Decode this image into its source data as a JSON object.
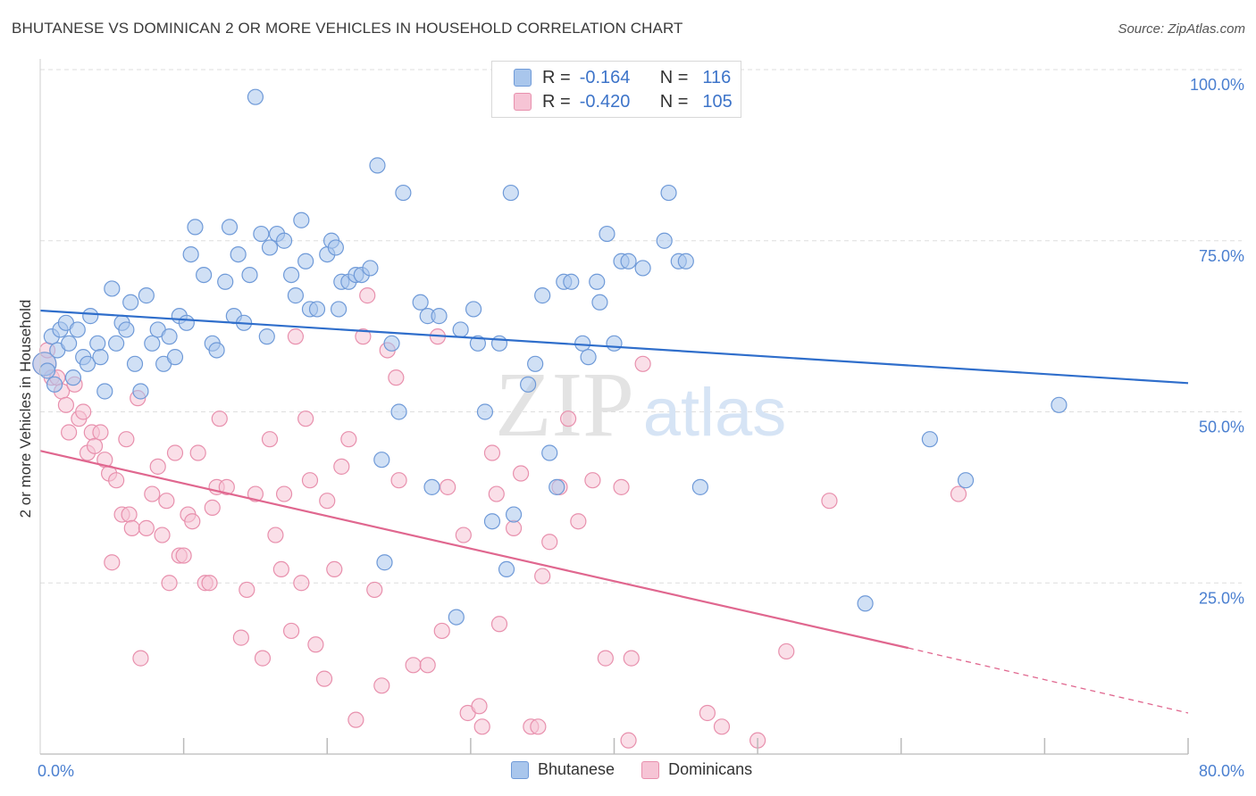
{
  "header": {
    "title": "BHUTANESE VS DOMINICAN 2 OR MORE VEHICLES IN HOUSEHOLD CORRELATION CHART",
    "source": "Source: ZipAtlas.com"
  },
  "legend_top": {
    "rows": [
      {
        "r_label": "R =",
        "r_value": "-0.164",
        "n_label": "N =",
        "n_value": "116",
        "color": "#5b8fd4"
      },
      {
        "r_label": "R =",
        "r_value": "-0.420",
        "n_label": "N =",
        "n_value": "105",
        "color": "#e87fa2"
      }
    ]
  },
  "watermark": {
    "zip": "ZIP",
    "atlas": "atlas"
  },
  "colors": {
    "blue_fill": "#a9c6ec",
    "blue_stroke": "#6f9ad8",
    "blue_line": "#2f6ecb",
    "pink_fill": "#f6c4d5",
    "pink_stroke": "#e890ad",
    "pink_line": "#e0678f",
    "axis_label": "#4a7fd0",
    "grid": "#dedede"
  },
  "chart_data": {
    "type": "scatter",
    "title": "BHUTANESE VS DOMINICAN 2 OR MORE VEHICLES IN HOUSEHOLD CORRELATION CHART",
    "xlabel": "",
    "ylabel": "2 or more Vehicles in Household",
    "xlim": [
      0,
      80
    ],
    "ylim": [
      0,
      100
    ],
    "x_tick_labels": [
      "0.0%",
      "80.0%"
    ],
    "y_tick_labels": [
      "25.0%",
      "50.0%",
      "75.0%",
      "100.0%"
    ],
    "y_ticks": [
      25,
      50,
      75,
      100
    ],
    "grid": true,
    "legend_position": "bottom",
    "series": [
      {
        "name": "Bhutanese",
        "r": -0.164,
        "n": 116,
        "trend": {
          "x0": 0,
          "y0": 64.8,
          "x1": 80,
          "y1": 54.2
        },
        "points": [
          [
            0.3,
            57
          ],
          [
            0.8,
            61
          ],
          [
            1.2,
            59
          ],
          [
            0.5,
            56
          ],
          [
            1,
            54
          ],
          [
            1.4,
            62
          ],
          [
            1.8,
            63
          ],
          [
            2,
            60
          ],
          [
            2.3,
            55
          ],
          [
            2.6,
            62
          ],
          [
            3,
            58
          ],
          [
            3.3,
            57
          ],
          [
            3.5,
            64
          ],
          [
            4,
            60
          ],
          [
            4.2,
            58
          ],
          [
            4.5,
            53
          ],
          [
            5,
            68
          ],
          [
            5.3,
            60
          ],
          [
            5.7,
            63
          ],
          [
            6,
            62
          ],
          [
            6.3,
            66
          ],
          [
            6.6,
            57
          ],
          [
            7,
            53
          ],
          [
            7.4,
            67
          ],
          [
            7.8,
            60
          ],
          [
            8.2,
            62
          ],
          [
            8.6,
            57
          ],
          [
            9,
            61
          ],
          [
            9.4,
            58
          ],
          [
            9.7,
            64
          ],
          [
            10.2,
            63
          ],
          [
            10.5,
            73
          ],
          [
            10.8,
            77
          ],
          [
            11.4,
            70
          ],
          [
            12,
            60
          ],
          [
            12.3,
            59
          ],
          [
            12.9,
            69
          ],
          [
            13.2,
            77
          ],
          [
            13.5,
            64
          ],
          [
            13.8,
            73
          ],
          [
            14.2,
            63
          ],
          [
            14.6,
            70
          ],
          [
            15,
            96
          ],
          [
            15.4,
            76
          ],
          [
            15.8,
            61
          ],
          [
            16,
            74
          ],
          [
            16.5,
            76
          ],
          [
            17,
            75
          ],
          [
            17.5,
            70
          ],
          [
            17.8,
            67
          ],
          [
            18.2,
            78
          ],
          [
            18.5,
            72
          ],
          [
            18.8,
            65
          ],
          [
            19.3,
            65
          ],
          [
            20,
            73
          ],
          [
            20.3,
            75
          ],
          [
            20.6,
            74
          ],
          [
            20.8,
            65
          ],
          [
            21,
            69
          ],
          [
            21.5,
            69
          ],
          [
            22,
            70
          ],
          [
            22.4,
            70
          ],
          [
            23,
            71
          ],
          [
            23.5,
            86
          ],
          [
            23.8,
            43
          ],
          [
            24,
            28
          ],
          [
            24.5,
            60
          ],
          [
            25,
            50
          ],
          [
            25.3,
            82
          ],
          [
            26.5,
            66
          ],
          [
            27,
            64
          ],
          [
            27.3,
            39
          ],
          [
            27.8,
            64
          ],
          [
            29,
            20
          ],
          [
            29.3,
            62
          ],
          [
            30.2,
            65
          ],
          [
            30.5,
            60
          ],
          [
            31,
            50
          ],
          [
            31.5,
            34
          ],
          [
            32,
            60
          ],
          [
            32.5,
            27
          ],
          [
            32.8,
            82
          ],
          [
            33,
            35
          ],
          [
            34,
            54
          ],
          [
            34.5,
            57
          ],
          [
            35,
            67
          ],
          [
            35.5,
            44
          ],
          [
            36,
            39
          ],
          [
            36.5,
            69
          ],
          [
            37,
            69
          ],
          [
            37.8,
            60
          ],
          [
            38.2,
            58
          ],
          [
            38.8,
            69
          ],
          [
            39,
            66
          ],
          [
            39.5,
            76
          ],
          [
            40,
            60
          ],
          [
            40.5,
            72
          ],
          [
            41,
            72
          ],
          [
            42,
            71
          ],
          [
            43,
            100
          ],
          [
            43.5,
            75
          ],
          [
            43.8,
            82
          ],
          [
            44.5,
            72
          ],
          [
            45,
            72
          ],
          [
            46,
            39
          ],
          [
            57.5,
            22
          ],
          [
            62,
            46
          ],
          [
            64.5,
            40
          ],
          [
            71,
            51
          ]
        ]
      },
      {
        "name": "Dominicans",
        "r": -0.42,
        "n": 105,
        "trend": {
          "x0": 0,
          "y0": 44.3,
          "x1": 60.5,
          "y1": 15.5,
          "dash_to_x": 80,
          "dash_to_y": 6
        },
        "points": [
          [
            0.3,
            57
          ],
          [
            0.5,
            59
          ],
          [
            0.8,
            55
          ],
          [
            1.2,
            55
          ],
          [
            1.5,
            53
          ],
          [
            1.8,
            51
          ],
          [
            2,
            47
          ],
          [
            2.4,
            54
          ],
          [
            2.7,
            49
          ],
          [
            3,
            50
          ],
          [
            3.3,
            44
          ],
          [
            3.6,
            47
          ],
          [
            3.8,
            45
          ],
          [
            4.2,
            47
          ],
          [
            4.5,
            43
          ],
          [
            4.8,
            41
          ],
          [
            5,
            28
          ],
          [
            5.3,
            40
          ],
          [
            5.7,
            35
          ],
          [
            6,
            46
          ],
          [
            6.2,
            35
          ],
          [
            6.4,
            33
          ],
          [
            6.8,
            52
          ],
          [
            7,
            14
          ],
          [
            7.4,
            33
          ],
          [
            7.8,
            38
          ],
          [
            8.2,
            42
          ],
          [
            8.5,
            32
          ],
          [
            8.8,
            37
          ],
          [
            9,
            25
          ],
          [
            9.4,
            44
          ],
          [
            9.7,
            29
          ],
          [
            10,
            29
          ],
          [
            10.3,
            35
          ],
          [
            10.6,
            34
          ],
          [
            11,
            44
          ],
          [
            11.5,
            25
          ],
          [
            11.8,
            25
          ],
          [
            12,
            36
          ],
          [
            12.3,
            39
          ],
          [
            12.5,
            49
          ],
          [
            13,
            39
          ],
          [
            14,
            17
          ],
          [
            14.4,
            24
          ],
          [
            15,
            38
          ],
          [
            15.5,
            14
          ],
          [
            16,
            46
          ],
          [
            16.4,
            32
          ],
          [
            16.8,
            27
          ],
          [
            17,
            38
          ],
          [
            17.5,
            18
          ],
          [
            17.8,
            61
          ],
          [
            18.2,
            25
          ],
          [
            18.5,
            49
          ],
          [
            18.8,
            40
          ],
          [
            19.2,
            16
          ],
          [
            19.8,
            11
          ],
          [
            20,
            37
          ],
          [
            20.5,
            27
          ],
          [
            21,
            42
          ],
          [
            21.5,
            46
          ],
          [
            22,
            5
          ],
          [
            22.5,
            61
          ],
          [
            22.8,
            67
          ],
          [
            23.3,
            24
          ],
          [
            23.8,
            10
          ],
          [
            24.2,
            59
          ],
          [
            24.8,
            55
          ],
          [
            25,
            40
          ],
          [
            26,
            13
          ],
          [
            27,
            13
          ],
          [
            27.7,
            61
          ],
          [
            28,
            18
          ],
          [
            28.4,
            39
          ],
          [
            29.5,
            32
          ],
          [
            29.8,
            6
          ],
          [
            30.6,
            7
          ],
          [
            30.8,
            4
          ],
          [
            31.5,
            44
          ],
          [
            31.8,
            38
          ],
          [
            32,
            19
          ],
          [
            33,
            33
          ],
          [
            33.5,
            41
          ],
          [
            34.2,
            4
          ],
          [
            34.7,
            4
          ],
          [
            35,
            26
          ],
          [
            35.5,
            31
          ],
          [
            36.2,
            39
          ],
          [
            36.8,
            49
          ],
          [
            37.5,
            34
          ],
          [
            38.5,
            40
          ],
          [
            39.4,
            14
          ],
          [
            40.5,
            39
          ],
          [
            41,
            2
          ],
          [
            41.2,
            14
          ],
          [
            42,
            57
          ],
          [
            46.5,
            6
          ],
          [
            47.5,
            4
          ],
          [
            50,
            2
          ],
          [
            52,
            15
          ],
          [
            55,
            37
          ],
          [
            64,
            38
          ]
        ]
      }
    ]
  },
  "bottom_legend": {
    "items": [
      {
        "label": "Bhutanese"
      },
      {
        "label": "Dominicans"
      }
    ]
  }
}
